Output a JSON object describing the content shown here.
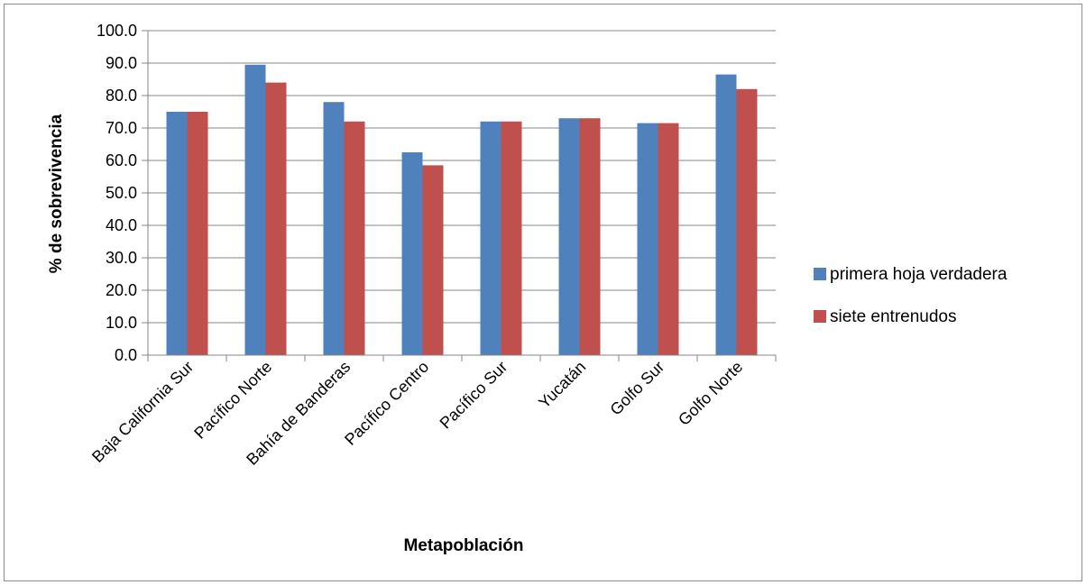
{
  "chart_data": {
    "type": "bar",
    "categories": [
      "Baja California Sur",
      "Pacífico Norte",
      "Bahía de Banderas",
      "Pacífico Centro",
      "Pacífico Sur",
      "Yucatán",
      "Golfo Sur",
      "Golfo Norte"
    ],
    "series": [
      {
        "name": "primera hoja verdadera",
        "color": "#4f81bd",
        "values": [
          75.0,
          89.5,
          78.0,
          62.5,
          72.0,
          73.0,
          71.5,
          86.5
        ]
      },
      {
        "name": "siete entrenudos",
        "color": "#c0504d",
        "values": [
          75.0,
          84.0,
          72.0,
          58.5,
          72.0,
          73.0,
          71.5,
          82.0
        ]
      }
    ],
    "xlabel": "Metapoblación",
    "ylabel": "% de sobrevivencia",
    "ylim": [
      0,
      100
    ],
    "yticks": [
      "0.0",
      "10.0",
      "20.0",
      "30.0",
      "40.0",
      "50.0",
      "60.0",
      "70.0",
      "80.0",
      "90.0",
      "100.0"
    ],
    "grid": true,
    "legend_position": "right"
  }
}
